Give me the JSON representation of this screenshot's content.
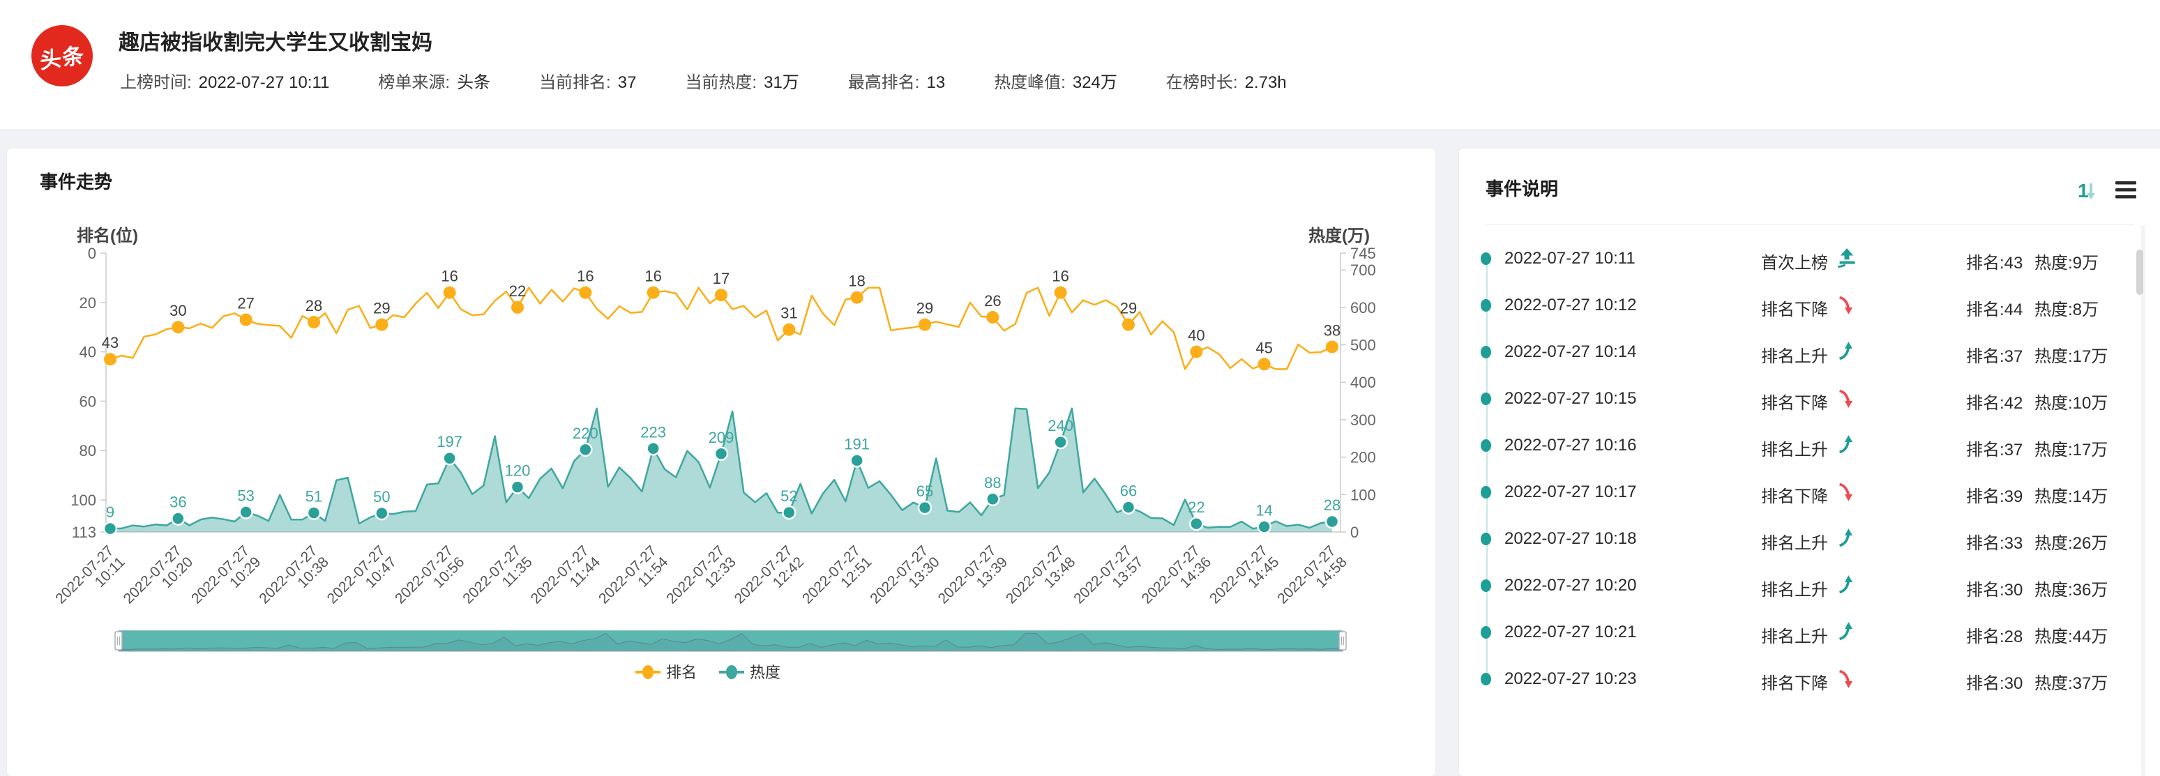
{
  "header": {
    "logo_text": "头条",
    "title": "趣店被指收割完大学生又收割宝妈",
    "meta": [
      {
        "label": "上榜时间:",
        "value": "2022-07-27 10:11"
      },
      {
        "label": "榜单来源:",
        "value": "头条"
      },
      {
        "label": "当前排名:",
        "value": "37"
      },
      {
        "label": "当前热度:",
        "value": "31万"
      },
      {
        "label": "最高排名:",
        "value": "13"
      },
      {
        "label": "热度峰值:",
        "value": "324万"
      },
      {
        "label": "在榜时长:",
        "value": "2.73h"
      }
    ]
  },
  "trend_panel": {
    "title": "事件走势"
  },
  "chart_data": {
    "type": "line",
    "title": "事件走势",
    "left_axis": {
      "name": "排名(位)",
      "inverted": true,
      "min": 0,
      "max": 113,
      "ticks": [
        0,
        20,
        40,
        60,
        80,
        100,
        113
      ]
    },
    "right_axis": {
      "name": "热度(万)",
      "min": 0,
      "max": 745,
      "ticks": [
        0,
        100,
        200,
        300,
        400,
        500,
        600,
        700,
        745
      ]
    },
    "x": [
      "2022-07-27 10:11",
      "2022-07-27 10:20",
      "2022-07-27 10:29",
      "2022-07-27 10:38",
      "2022-07-27 10:47",
      "2022-07-27 10:56",
      "2022-07-27 11:35",
      "2022-07-27 11:44",
      "2022-07-27 11:54",
      "2022-07-27 12:33",
      "2022-07-27 12:42",
      "2022-07-27 12:51",
      "2022-07-27 13:30",
      "2022-07-27 13:39",
      "2022-07-27 13:48",
      "2022-07-27 13:57",
      "2022-07-27 14:36",
      "2022-07-27 14:45",
      "2022-07-27 14:58"
    ],
    "series": [
      {
        "name": "排名",
        "axis": "left",
        "type": "line",
        "values": [
          43,
          30,
          27,
          28,
          29,
          16,
          22,
          16,
          16,
          17,
          31,
          18,
          29,
          26,
          16,
          29,
          40,
          45,
          38
        ]
      },
      {
        "name": "热度",
        "axis": "right",
        "type": "area",
        "values": [
          9,
          36,
          53,
          51,
          50,
          197,
          120,
          220,
          223,
          209,
          52,
          191,
          65,
          88,
          240,
          66,
          22,
          14,
          28
        ]
      }
    ],
    "legend_position": "bottom",
    "grid": false,
    "has_datazoom_slider": true
  },
  "events_panel": {
    "title": "事件说明",
    "sort_icon_label": "1",
    "icons": {
      "sort": "sort-order-icon",
      "menu": "list-menu-icon"
    },
    "rows": [
      {
        "time": "2022-07-27 10:11",
        "event": "首次上榜",
        "direction": "first",
        "rank": "排名:43",
        "heat": "热度:9万"
      },
      {
        "time": "2022-07-27 10:12",
        "event": "排名下降",
        "direction": "down",
        "rank": "排名:44",
        "heat": "热度:8万"
      },
      {
        "time": "2022-07-27 10:14",
        "event": "排名上升",
        "direction": "up",
        "rank": "排名:37",
        "heat": "热度:17万"
      },
      {
        "time": "2022-07-27 10:15",
        "event": "排名下降",
        "direction": "down",
        "rank": "排名:42",
        "heat": "热度:10万"
      },
      {
        "time": "2022-07-27 10:16",
        "event": "排名上升",
        "direction": "up",
        "rank": "排名:37",
        "heat": "热度:17万"
      },
      {
        "time": "2022-07-27 10:17",
        "event": "排名下降",
        "direction": "down",
        "rank": "排名:39",
        "heat": "热度:14万"
      },
      {
        "time": "2022-07-27 10:18",
        "event": "排名上升",
        "direction": "up",
        "rank": "排名:33",
        "heat": "热度:26万"
      },
      {
        "time": "2022-07-27 10:20",
        "event": "排名上升",
        "direction": "up",
        "rank": "排名:30",
        "heat": "热度:36万"
      },
      {
        "time": "2022-07-27 10:21",
        "event": "排名上升",
        "direction": "up",
        "rank": "排名:28",
        "heat": "热度:44万"
      },
      {
        "time": "2022-07-27 10:23",
        "event": "排名下降",
        "direction": "down",
        "rank": "排名:30",
        "heat": "热度:37万"
      }
    ]
  },
  "colors": {
    "logo_red": "#E3281E",
    "accent_orange": "#FBAE17",
    "accent_teal": "#3EA79F",
    "teal_marker": "#2AA099",
    "teal_dark": "#1D9E96",
    "area_fill": "rgba(62,167,159,0.42)",
    "red_down": "#F2484F",
    "axis_line": "#cccccc",
    "datazoom_fill": "#5CB7B0"
  }
}
